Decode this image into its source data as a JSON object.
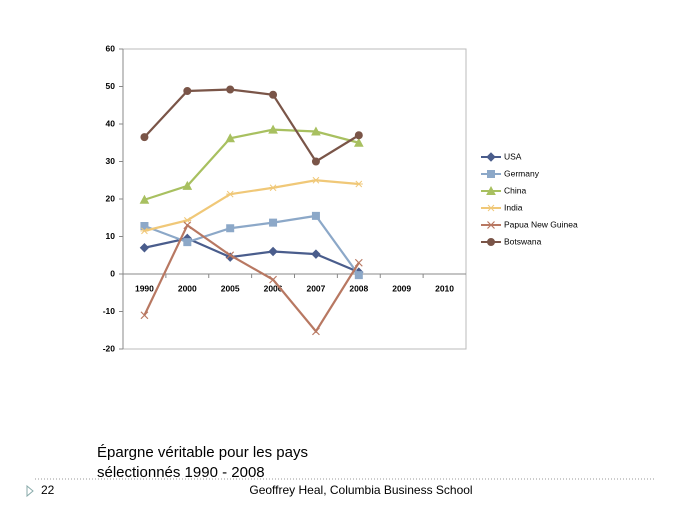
{
  "chart_data": {
    "type": "line",
    "categories": [
      "1990",
      "2000",
      "2005",
      "2006",
      "2007",
      "2008",
      "2009",
      "2010"
    ],
    "ylim": [
      -20,
      60
    ],
    "yticks": [
      -20,
      -10,
      0,
      10,
      20,
      30,
      40,
      50,
      60
    ],
    "grid": false,
    "legend": "right",
    "series": [
      {
        "name": "USA",
        "color": "#4a5d8c",
        "marker": "diamond",
        "values": [
          7,
          9.5,
          4.5,
          6,
          5.3,
          0.5,
          null,
          null
        ]
      },
      {
        "name": "Germany",
        "color": "#8ca8c8",
        "marker": "square",
        "values": [
          12.8,
          8.5,
          12.2,
          13.7,
          15.5,
          -0.3,
          null,
          null
        ]
      },
      {
        "name": "China",
        "color": "#a8c060",
        "marker": "triangle",
        "values": [
          19.8,
          23.5,
          36.2,
          38.5,
          38,
          35,
          null,
          null
        ]
      },
      {
        "name": "India",
        "color": "#f0c878",
        "marker": "star",
        "values": [
          11.5,
          14.3,
          21.3,
          23,
          25,
          24,
          null,
          null
        ]
      },
      {
        "name": "Papua New Guinea",
        "color": "#b87862",
        "marker": "cross",
        "values": [
          -11,
          13,
          5,
          -1.5,
          -15.3,
          3,
          null,
          null
        ]
      },
      {
        "name": "Botswana",
        "color": "#7a5548",
        "marker": "circle",
        "values": [
          36.5,
          48.8,
          49.2,
          47.8,
          30,
          37,
          null,
          null
        ]
      }
    ]
  },
  "slide": {
    "caption": [
      "Épargne véritable pour les pays",
      "sélectionnés 1990 - 2008"
    ],
    "page_number": 22,
    "footer": "Geoffrey Heal,  Columbia Business School"
  }
}
